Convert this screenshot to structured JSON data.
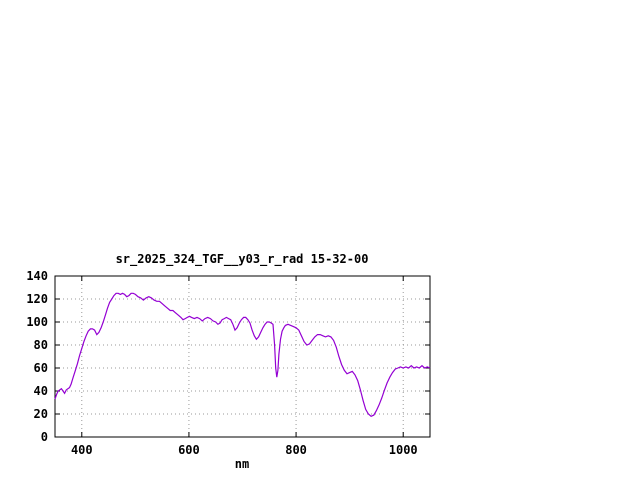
{
  "window": {
    "background": "#ffffff",
    "text_color": "#000000"
  },
  "chart_data": {
    "type": "line",
    "title": "sr_2025_324_TGF__y03_r_rad 15-32-00",
    "xlabel": "nm",
    "ylabel": "",
    "xlim": [
      350,
      1050
    ],
    "ylim": [
      0,
      140
    ],
    "xticks": [
      400,
      600,
      800,
      1000
    ],
    "yticks": [
      0,
      20,
      40,
      60,
      80,
      100,
      120,
      140
    ],
    "grid": true,
    "grid_style": "dotted",
    "line_color": "#9400d3",
    "series": [
      {
        "name": "sr_2025_324_TGF__y03_r_rad",
        "points": [
          [
            350,
            33
          ],
          [
            353,
            37
          ],
          [
            356,
            40
          ],
          [
            359,
            41
          ],
          [
            362,
            42
          ],
          [
            365,
            40
          ],
          [
            368,
            38
          ],
          [
            371,
            41
          ],
          [
            374,
            42
          ],
          [
            377,
            43
          ],
          [
            380,
            46
          ],
          [
            384,
            52
          ],
          [
            388,
            58
          ],
          [
            392,
            64
          ],
          [
            396,
            71
          ],
          [
            400,
            77
          ],
          [
            404,
            83
          ],
          [
            408,
            88
          ],
          [
            412,
            92
          ],
          [
            416,
            94
          ],
          [
            420,
            94
          ],
          [
            424,
            93
          ],
          [
            428,
            89
          ],
          [
            432,
            91
          ],
          [
            436,
            95
          ],
          [
            440,
            100
          ],
          [
            444,
            106
          ],
          [
            448,
            112
          ],
          [
            452,
            117
          ],
          [
            456,
            120
          ],
          [
            460,
            123
          ],
          [
            464,
            125
          ],
          [
            468,
            125
          ],
          [
            472,
            124
          ],
          [
            476,
            125
          ],
          [
            480,
            124
          ],
          [
            484,
            122
          ],
          [
            488,
            123
          ],
          [
            492,
            125
          ],
          [
            496,
            125
          ],
          [
            500,
            124
          ],
          [
            505,
            122
          ],
          [
            510,
            121
          ],
          [
            515,
            119
          ],
          [
            520,
            121
          ],
          [
            525,
            122
          ],
          [
            530,
            121
          ],
          [
            535,
            119
          ],
          [
            540,
            118
          ],
          [
            545,
            118
          ],
          [
            550,
            116
          ],
          [
            555,
            114
          ],
          [
            560,
            112
          ],
          [
            565,
            110
          ],
          [
            570,
            110
          ],
          [
            575,
            108
          ],
          [
            580,
            106
          ],
          [
            585,
            104
          ],
          [
            589,
            102
          ],
          [
            593,
            103
          ],
          [
            597,
            104
          ],
          [
            601,
            105
          ],
          [
            605,
            104
          ],
          [
            610,
            103
          ],
          [
            615,
            104
          ],
          [
            620,
            103
          ],
          [
            625,
            101
          ],
          [
            630,
            103
          ],
          [
            635,
            104
          ],
          [
            640,
            103
          ],
          [
            645,
            101
          ],
          [
            650,
            100
          ],
          [
            654,
            98
          ],
          [
            658,
            99
          ],
          [
            662,
            102
          ],
          [
            666,
            103
          ],
          [
            670,
            104
          ],
          [
            674,
            103
          ],
          [
            678,
            102
          ],
          [
            682,
            98
          ],
          [
            686,
            93
          ],
          [
            690,
            95
          ],
          [
            694,
            99
          ],
          [
            698,
            102
          ],
          [
            702,
            104
          ],
          [
            706,
            104
          ],
          [
            710,
            102
          ],
          [
            714,
            99
          ],
          [
            718,
            93
          ],
          [
            722,
            88
          ],
          [
            726,
            85
          ],
          [
            730,
            87
          ],
          [
            734,
            91
          ],
          [
            738,
            95
          ],
          [
            742,
            98
          ],
          [
            746,
            100
          ],
          [
            750,
            100
          ],
          [
            754,
            99
          ],
          [
            757,
            98
          ],
          [
            760,
            80
          ],
          [
            762,
            60
          ],
          [
            764,
            52
          ],
          [
            766,
            58
          ],
          [
            768,
            72
          ],
          [
            771,
            85
          ],
          [
            774,
            92
          ],
          [
            777,
            95
          ],
          [
            780,
            97
          ],
          [
            785,
            98
          ],
          [
            790,
            97
          ],
          [
            795,
            96
          ],
          [
            800,
            95
          ],
          [
            805,
            93
          ],
          [
            810,
            88
          ],
          [
            815,
            83
          ],
          [
            820,
            80
          ],
          [
            825,
            81
          ],
          [
            830,
            84
          ],
          [
            835,
            87
          ],
          [
            840,
            89
          ],
          [
            845,
            89
          ],
          [
            850,
            88
          ],
          [
            855,
            87
          ],
          [
            860,
            88
          ],
          [
            865,
            87
          ],
          [
            870,
            84
          ],
          [
            875,
            78
          ],
          [
            880,
            70
          ],
          [
            885,
            63
          ],
          [
            890,
            58
          ],
          [
            895,
            55
          ],
          [
            900,
            56
          ],
          [
            905,
            57
          ],
          [
            910,
            54
          ],
          [
            915,
            49
          ],
          [
            920,
            41
          ],
          [
            925,
            32
          ],
          [
            930,
            24
          ],
          [
            935,
            20
          ],
          [
            940,
            18
          ],
          [
            945,
            19
          ],
          [
            950,
            23
          ],
          [
            955,
            28
          ],
          [
            960,
            34
          ],
          [
            965,
            41
          ],
          [
            970,
            47
          ],
          [
            975,
            52
          ],
          [
            980,
            56
          ],
          [
            985,
            59
          ],
          [
            990,
            60
          ],
          [
            995,
            61
          ],
          [
            1000,
            60
          ],
          [
            1005,
            61
          ],
          [
            1010,
            60
          ],
          [
            1015,
            62
          ],
          [
            1020,
            60
          ],
          [
            1025,
            61
          ],
          [
            1030,
            60
          ],
          [
            1035,
            62
          ],
          [
            1040,
            60
          ],
          [
            1045,
            61
          ],
          [
            1050,
            60
          ]
        ]
      }
    ]
  }
}
